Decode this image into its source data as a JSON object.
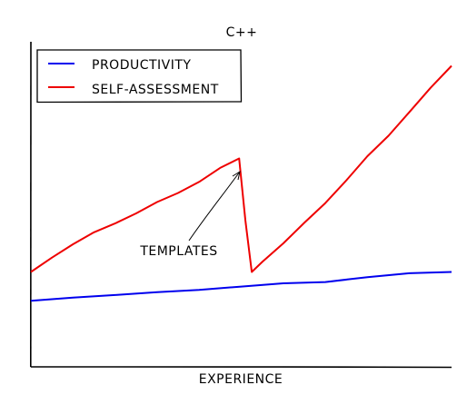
{
  "chart_data": {
    "type": "line",
    "title": "C++",
    "xlabel": "EXPERIENCE",
    "ylabel": "",
    "xlim": [
      0,
      100
    ],
    "ylim": [
      0,
      100
    ],
    "grid": false,
    "legend_position": "top-left",
    "series": [
      {
        "name": "PRODUCTIVITY",
        "color": "#0000ee",
        "x": [
          0,
          10,
          20,
          30,
          40,
          50,
          60,
          70,
          80,
          90,
          100
        ],
        "y": [
          20.3,
          21.3,
          22.1,
          23.0,
          23.7,
          24.7,
          25.7,
          26.1,
          27.6,
          28.8,
          29.2
        ]
      },
      {
        "name": "SELF-ASSESSMENT",
        "color": "#ee0000",
        "x": [
          0,
          5,
          10,
          15,
          20,
          25,
          30,
          35,
          40,
          45,
          49.5,
          51,
          52.5,
          55,
          60,
          65,
          70,
          75,
          80,
          85,
          90,
          95,
          100
        ],
        "y": [
          29.2,
          33.6,
          37.7,
          41.4,
          44.1,
          47.2,
          50.7,
          53.5,
          56.9,
          61.2,
          64.1,
          45.0,
          29.2,
          32.3,
          38.0,
          44.3,
          50.4,
          57.4,
          64.8,
          71.1,
          78.4,
          85.8,
          92.6
        ]
      }
    ],
    "annotations": [
      {
        "text": "TEMPLATES",
        "x": 49.5,
        "y": 64.1
      }
    ]
  }
}
